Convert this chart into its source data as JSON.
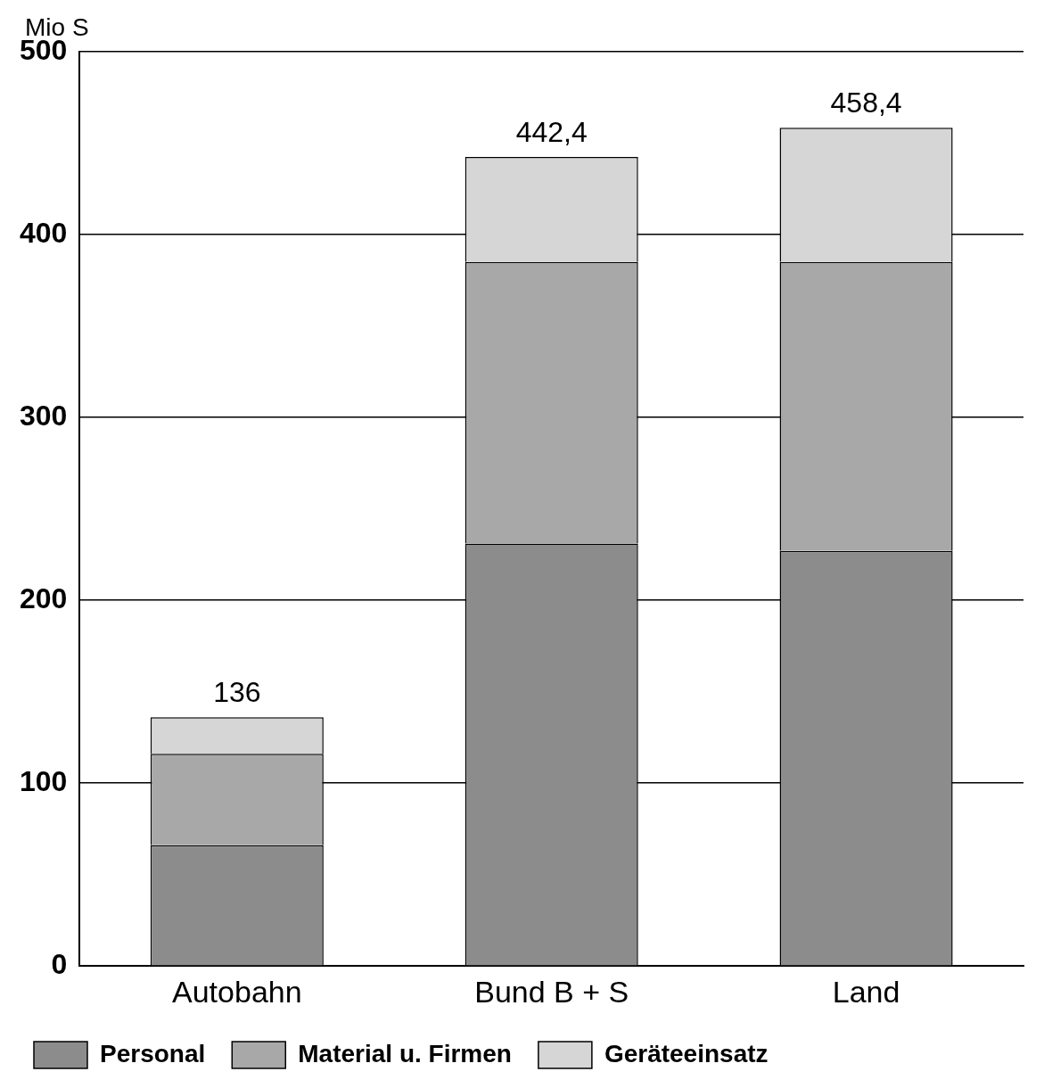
{
  "chart_data": {
    "type": "bar",
    "stacked": true,
    "ylabel": "Mio S",
    "categories": [
      "Autobahn",
      "Bund B + S",
      "Land"
    ],
    "series": [
      {
        "name": "Personal",
        "color": "#8c8c8c",
        "values": [
          66,
          231,
          227
        ]
      },
      {
        "name": "Material u. Firmen",
        "color": "#a8a8a8",
        "values": [
          50,
          154,
          158
        ]
      },
      {
        "name": "Geräteeinsatz",
        "color": "#d6d6d6",
        "values": [
          20,
          57.4,
          73.4
        ]
      }
    ],
    "totals": [
      "136",
      "442,4",
      "458,4"
    ],
    "ylim": [
      0,
      500
    ],
    "yticks": [
      0,
      100,
      200,
      300,
      400,
      500
    ],
    "grid": "y",
    "legend": "bottom"
  }
}
